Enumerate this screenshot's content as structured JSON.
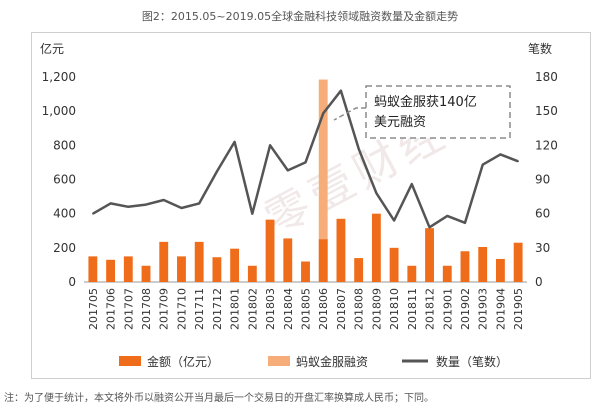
{
  "title": "图2：2015.05~2019.05全球金融科技领域融资数量及金额走势",
  "footnote": "注：为了便于统计，本文将外币以融资公开当月最后一个交易日的开盘汇率换算成人民币；下同。",
  "watermark": "零壹财经",
  "colors": {
    "bar": "#ef6c1a",
    "highlight": "#f6ad7a",
    "line": "#555555"
  },
  "chart_data": {
    "type": "bar",
    "categories": [
      "201705",
      "201706",
      "201707",
      "201708",
      "201709",
      "201710",
      "201711",
      "201712",
      "201801",
      "201802",
      "201803",
      "201804",
      "201805",
      "201806",
      "201807",
      "201808",
      "201809",
      "201810",
      "201811",
      "201812",
      "201901",
      "201902",
      "201903",
      "201904",
      "201905"
    ],
    "left_axis_unit": "亿元",
    "right_axis_unit": "笔数",
    "ylim": [
      0,
      1200
    ],
    "yticks": [
      "0",
      "200",
      "400",
      "600",
      "800",
      "1,000",
      "1,200"
    ],
    "y2lim": [
      0,
      180
    ],
    "y2ticks": [
      "0",
      "30",
      "60",
      "90",
      "120",
      "150",
      "180"
    ],
    "series": [
      {
        "name": "金额（亿元）",
        "kind": "bar",
        "values": [
          150,
          130,
          150,
          95,
          235,
          150,
          235,
          145,
          195,
          95,
          365,
          255,
          120,
          250,
          370,
          140,
          400,
          200,
          95,
          315,
          95,
          180,
          205,
          135,
          230
        ]
      },
      {
        "name": "蚂蚁金服融资",
        "kind": "bar-highlight",
        "category": "201806",
        "value": 1185
      },
      {
        "name": "数量（笔数）",
        "kind": "line",
        "axis": "right",
        "values": [
          60,
          69,
          66,
          68,
          72,
          65,
          69,
          97,
          123,
          60,
          120,
          98,
          105,
          148,
          168,
          117,
          78,
          54,
          86,
          48,
          58,
          52,
          103,
          112,
          106
        ]
      }
    ],
    "annotation": {
      "line1": "蚂蚁金服获140亿",
      "line2": "美元融资"
    },
    "legend": "bottom"
  }
}
